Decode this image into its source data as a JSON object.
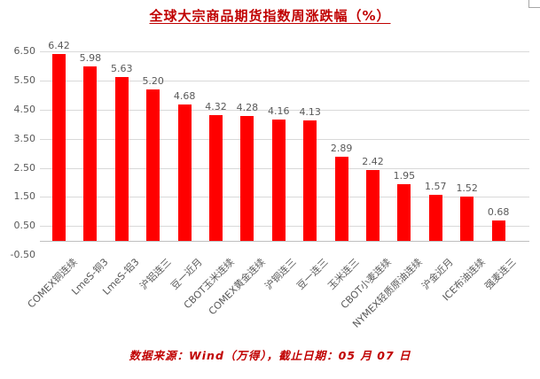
{
  "title": "全球大宗商品期货指数周涨跌幅（%）",
  "footer": "数据来源：Wind（万得），截止日期：05 月 07 日",
  "colors": {
    "bar": "#ff0000",
    "accent_text": "#c00000",
    "axis_text": "#595959",
    "gridline": "#d9d9d9",
    "axis_line": "#bfbfbf",
    "corner_mark": "#a6a6a6"
  },
  "chart_data": {
    "type": "bar",
    "title": "全球大宗商品期货指数周涨跌幅（%）",
    "categories": [
      "COMEX铜连续",
      "LmeS-铜3",
      "LmeS-铝3",
      "沪铝连三",
      "豆一近月",
      "CBOT玉米连续",
      "COMEX黄金连续",
      "沪铜连三",
      "豆一连三",
      "玉米连三",
      "CBOT小麦连续",
      "NYMEX轻质原油连续",
      "沪金近月",
      "ICE布油连续",
      "强麦连三"
    ],
    "values": [
      6.42,
      5.98,
      5.63,
      5.2,
      4.68,
      4.32,
      4.28,
      4.16,
      4.13,
      2.89,
      2.42,
      1.95,
      1.57,
      1.52,
      0.68
    ],
    "y_ticks": [
      "6.50",
      "5.50",
      "4.50",
      "3.50",
      "2.50",
      "1.50",
      "0.50",
      "-0.50"
    ],
    "ylim": [
      -0.5,
      6.5
    ],
    "xlabel": "",
    "ylabel": "",
    "grid": true,
    "legend": "none",
    "bar_color": "#ff0000",
    "value_label_position": "above",
    "x_label_rotation_deg": 45
  }
}
